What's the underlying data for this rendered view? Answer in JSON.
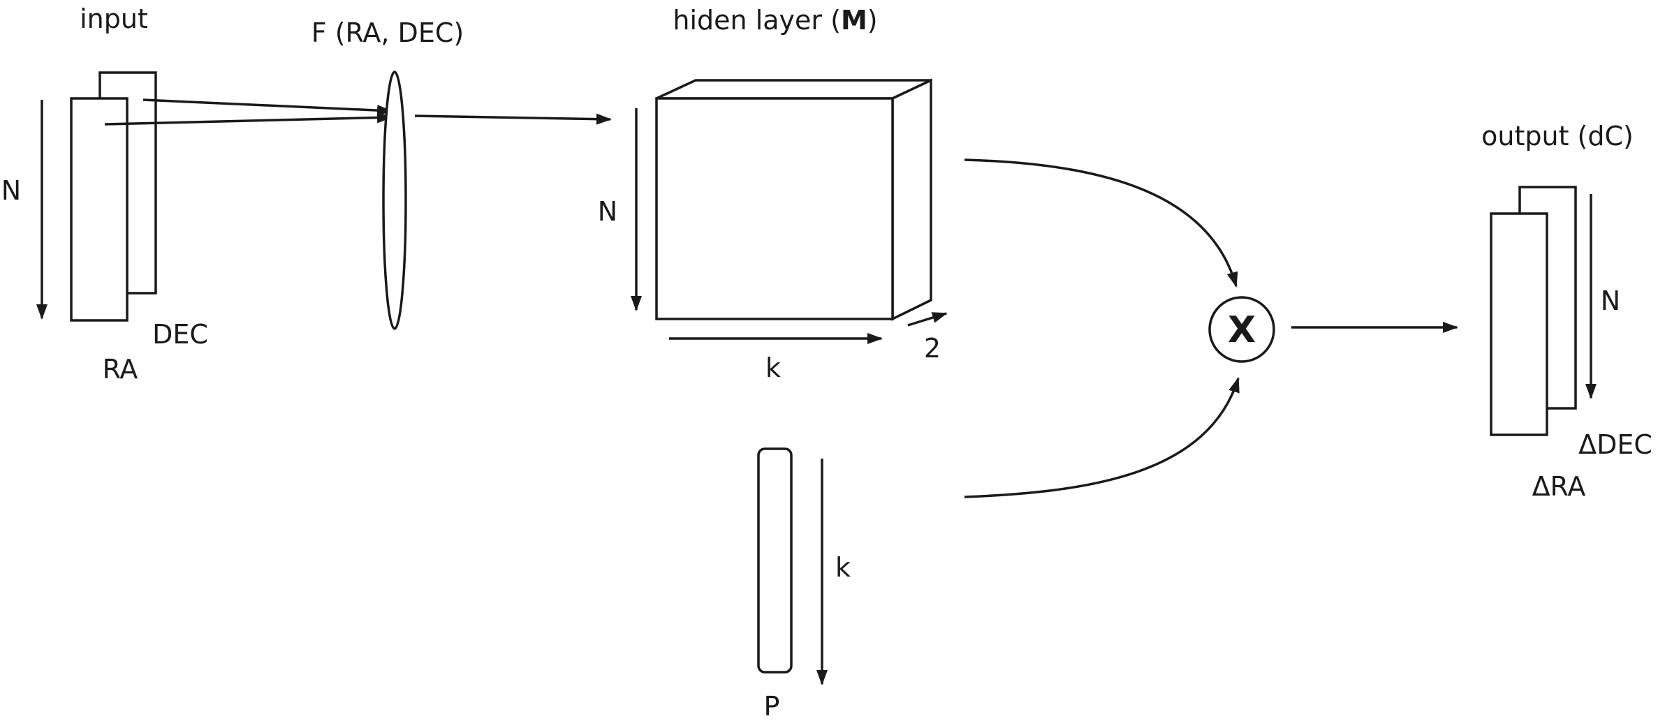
{
  "input": {
    "title": "input",
    "n_label": "N",
    "ra_label": "RA",
    "dec_label": "DEC"
  },
  "function": {
    "label": "F (RA, DEC)"
  },
  "hidden": {
    "title_prefix": "hiden layer (",
    "title_bold": "M",
    "title_suffix": ")",
    "n_label": "N",
    "k_label": "k",
    "depth_label": "2"
  },
  "vector_p": {
    "k_label": "k",
    "p_label": "P"
  },
  "operator": {
    "symbol": "X"
  },
  "output": {
    "title": "output (dC)",
    "n_label": "N",
    "dra_label": "ΔRA",
    "ddec_label": "ΔDEC"
  },
  "colors": {
    "stroke": "#1a1a1a",
    "background": "#ffffff"
  }
}
